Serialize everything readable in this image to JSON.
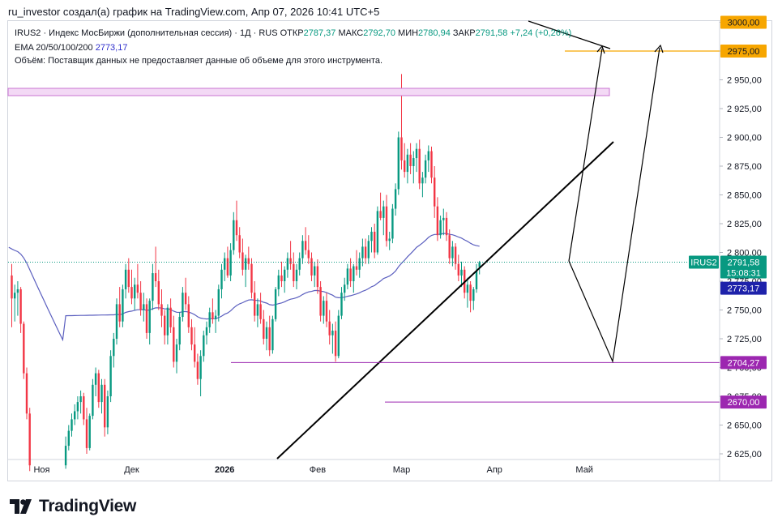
{
  "header": {
    "author_line": "ru_investor создал(а) график на TradingView.com, Апр 07, 2026 10:41 UTC+5"
  },
  "legend": {
    "instrument": "IRUS2 · Индекс МосБиржи (дополнительная сессия) · 1Д · RUS",
    "open_label": "ОТКР",
    "open_value": "2787,37",
    "high_label": "МАКС",
    "high_value": "2792,70",
    "low_label": "МИН",
    "low_value": "2780,94",
    "close_label": "ЗАКР",
    "close_value": "2791,58",
    "change": "+7,24 (+0,26%)",
    "ema_label": "EMA 20/50/100/200",
    "ema_value": "2773,17",
    "volume_note": "Объём: Поставщик данных не предоставляет данные об объеме для этого инструмента."
  },
  "price_tags": {
    "ticker": "IRUS2",
    "last_price": "2791,58",
    "countdown": "15:08:31",
    "ema_price": "2773,17",
    "level_2975": "2975,00",
    "level_3000": "3000,00",
    "level_2704": "2704,27",
    "level_2670": "2670,00"
  },
  "brand": {
    "name": "TradingView"
  },
  "colors": {
    "up": "#089981",
    "down": "#f23645",
    "ema": "#5b5fbf",
    "orange": "#f7a600",
    "purple": "#9c27b0"
  },
  "chart_data": {
    "type": "candlestick",
    "title": "IRUS2 · Индекс МосБиржи (дополнительная сессия) · 1Д",
    "y_axis": {
      "range": [
        2612,
        3010
      ],
      "ticks": [
        "2 625,00",
        "2 650,00",
        "2 675,00",
        "2 700,00",
        "2 725,00",
        "2 750,00",
        "2 775,00",
        "2 800,00",
        "2 825,00",
        "2 850,00",
        "2 875,00",
        "2 900,00",
        "2 925,00",
        "2 950,00",
        "2 975,00",
        "3 000,00"
      ]
    },
    "x_axis": {
      "labels": [
        {
          "text": "Ноя",
          "day": 10
        },
        {
          "text": "Дек",
          "day": 40
        },
        {
          "text": "2026",
          "day": 71
        },
        {
          "text": "Фев",
          "day": 102
        },
        {
          "text": "Мар",
          "day": 130
        },
        {
          "text": "Апр",
          "day": 161
        },
        {
          "text": "Май",
          "day": 191
        }
      ]
    },
    "candles": [
      [
        0,
        2780,
        2790,
        2735,
        2760
      ],
      [
        1,
        2760,
        2772,
        2740,
        2765
      ],
      [
        2,
        2765,
        2775,
        2745,
        2768
      ],
      [
        3,
        2768,
        2770,
        2730,
        2738
      ],
      [
        4,
        2738,
        2740,
        2690,
        2695
      ],
      [
        5,
        2695,
        2700,
        2655,
        2660
      ],
      [
        6,
        2660,
        2665,
        2610,
        2615
      ],
      [
        18,
        2615,
        2640,
        2612,
        2632
      ],
      [
        19,
        2632,
        2650,
        2628,
        2645
      ],
      [
        20,
        2645,
        2660,
        2640,
        2655
      ],
      [
        21,
        2655,
        2668,
        2650,
        2662
      ],
      [
        22,
        2662,
        2675,
        2655,
        2670
      ],
      [
        23,
        2670,
        2680,
        2660,
        2675
      ],
      [
        24,
        2675,
        2678,
        2650,
        2655
      ],
      [
        25,
        2655,
        2665,
        2625,
        2630
      ],
      [
        26,
        2630,
        2660,
        2628,
        2658
      ],
      [
        27,
        2658,
        2690,
        2655,
        2685
      ],
      [
        28,
        2685,
        2700,
        2675,
        2695
      ],
      [
        29,
        2695,
        2698,
        2665,
        2670
      ],
      [
        30,
        2670,
        2690,
        2660,
        2685
      ],
      [
        31,
        2685,
        2690,
        2640,
        2648
      ],
      [
        32,
        2648,
        2680,
        2642,
        2675
      ],
      [
        33,
        2675,
        2715,
        2670,
        2710
      ],
      [
        34,
        2710,
        2730,
        2700,
        2725
      ],
      [
        35,
        2725,
        2760,
        2720,
        2755
      ],
      [
        36,
        2755,
        2770,
        2735,
        2740
      ],
      [
        37,
        2740,
        2772,
        2735,
        2768
      ],
      [
        38,
        2768,
        2790,
        2760,
        2785
      ],
      [
        39,
        2785,
        2795,
        2765,
        2770
      ],
      [
        40,
        2770,
        2785,
        2755,
        2760
      ],
      [
        41,
        2760,
        2778,
        2750,
        2772
      ],
      [
        42,
        2772,
        2790,
        2760,
        2765
      ],
      [
        43,
        2765,
        2775,
        2745,
        2750
      ],
      [
        44,
        2750,
        2765,
        2740,
        2755
      ],
      [
        45,
        2755,
        2760,
        2725,
        2730
      ],
      [
        46,
        2730,
        2760,
        2720,
        2758
      ],
      [
        47,
        2758,
        2790,
        2750,
        2782
      ],
      [
        48,
        2782,
        2805,
        2770,
        2775
      ],
      [
        49,
        2775,
        2785,
        2750,
        2755
      ],
      [
        50,
        2755,
        2768,
        2735,
        2745
      ],
      [
        51,
        2745,
        2750,
        2720,
        2728
      ],
      [
        52,
        2728,
        2755,
        2720,
        2752
      ],
      [
        53,
        2752,
        2760,
        2730,
        2735
      ],
      [
        54,
        2735,
        2745,
        2700,
        2705
      ],
      [
        55,
        2705,
        2725,
        2695,
        2720
      ],
      [
        56,
        2720,
        2748,
        2715,
        2744
      ],
      [
        57,
        2744,
        2770,
        2740,
        2765
      ],
      [
        58,
        2765,
        2778,
        2750,
        2755
      ],
      [
        59,
        2755,
        2762,
        2730,
        2735
      ],
      [
        60,
        2735,
        2742,
        2715,
        2720
      ],
      [
        61,
        2720,
        2735,
        2700,
        2705
      ],
      [
        62,
        2705,
        2712,
        2685,
        2690
      ],
      [
        63,
        2690,
        2715,
        2675,
        2710
      ],
      [
        64,
        2710,
        2732,
        2705,
        2728
      ],
      [
        65,
        2728,
        2740,
        2720,
        2735
      ],
      [
        66,
        2735,
        2752,
        2730,
        2748
      ],
      [
        67,
        2748,
        2760,
        2738,
        2742
      ],
      [
        68,
        2742,
        2750,
        2730,
        2745
      ],
      [
        69,
        2745,
        2772,
        2740,
        2768
      ],
      [
        70,
        2768,
        2790,
        2760,
        2785
      ],
      [
        71,
        2785,
        2800,
        2775,
        2795
      ],
      [
        72,
        2795,
        2805,
        2778,
        2780
      ],
      [
        73,
        2780,
        2808,
        2775,
        2802
      ],
      [
        74,
        2802,
        2835,
        2798,
        2828
      ],
      [
        75,
        2828,
        2845,
        2810,
        2815
      ],
      [
        76,
        2815,
        2822,
        2795,
        2800
      ],
      [
        77,
        2800,
        2812,
        2780,
        2785
      ],
      [
        78,
        2785,
        2798,
        2770,
        2795
      ],
      [
        79,
        2795,
        2805,
        2785,
        2790
      ],
      [
        80,
        2790,
        2795,
        2760,
        2765
      ],
      [
        81,
        2765,
        2775,
        2740,
        2745
      ],
      [
        82,
        2745,
        2760,
        2735,
        2755
      ],
      [
        83,
        2755,
        2765,
        2738,
        2742
      ],
      [
        84,
        2742,
        2750,
        2720,
        2725
      ],
      [
        85,
        2725,
        2740,
        2715,
        2735
      ],
      [
        86,
        2735,
        2745,
        2710,
        2715
      ],
      [
        87,
        2715,
        2745,
        2712,
        2742
      ],
      [
        88,
        2742,
        2770,
        2740,
        2768
      ],
      [
        89,
        2768,
        2785,
        2762,
        2780
      ],
      [
        90,
        2780,
        2792,
        2770,
        2775
      ],
      [
        91,
        2775,
        2788,
        2765,
        2785
      ],
      [
        92,
        2785,
        2800,
        2778,
        2795
      ],
      [
        93,
        2795,
        2810,
        2785,
        2790
      ],
      [
        94,
        2790,
        2800,
        2770,
        2775
      ],
      [
        95,
        2775,
        2790,
        2768,
        2785
      ],
      [
        96,
        2785,
        2800,
        2780,
        2795
      ],
      [
        97,
        2795,
        2815,
        2790,
        2810
      ],
      [
        98,
        2810,
        2822,
        2798,
        2802
      ],
      [
        99,
        2802,
        2815,
        2790,
        2795
      ],
      [
        100,
        2795,
        2800,
        2775,
        2780
      ],
      [
        101,
        2780,
        2792,
        2770,
        2788
      ],
      [
        102,
        2788,
        2794,
        2764,
        2770
      ],
      [
        103,
        2770,
        2775,
        2740,
        2745
      ],
      [
        104,
        2745,
        2762,
        2738,
        2758
      ],
      [
        105,
        2758,
        2765,
        2735,
        2740
      ],
      [
        106,
        2740,
        2750,
        2720,
        2728
      ],
      [
        107,
        2728,
        2738,
        2712,
        2732
      ],
      [
        108,
        2732,
        2740,
        2705,
        2710
      ],
      [
        109,
        2710,
        2750,
        2708,
        2745
      ],
      [
        110,
        2745,
        2770,
        2742,
        2765
      ],
      [
        111,
        2765,
        2778,
        2758,
        2772
      ],
      [
        112,
        2772,
        2790,
        2768,
        2786
      ],
      [
        113,
        2786,
        2795,
        2770,
        2775
      ],
      [
        114,
        2775,
        2790,
        2765,
        2788
      ],
      [
        115,
        2788,
        2802,
        2780,
        2785
      ],
      [
        116,
        2785,
        2800,
        2778,
        2795
      ],
      [
        117,
        2795,
        2812,
        2788,
        2805
      ],
      [
        118,
        2805,
        2812,
        2790,
        2795
      ],
      [
        119,
        2795,
        2815,
        2790,
        2810
      ],
      [
        120,
        2810,
        2822,
        2800,
        2818
      ],
      [
        121,
        2818,
        2825,
        2795,
        2800
      ],
      [
        122,
        2800,
        2840,
        2798,
        2836
      ],
      [
        123,
        2836,
        2852,
        2828,
        2830
      ],
      [
        124,
        2830,
        2845,
        2815,
        2840
      ],
      [
        125,
        2840,
        2850,
        2805,
        2810
      ],
      [
        126,
        2810,
        2818,
        2802,
        2812
      ],
      [
        127,
        2812,
        2842,
        2808,
        2838
      ],
      [
        128,
        2838,
        2860,
        2832,
        2855
      ],
      [
        129,
        2855,
        2905,
        2850,
        2900
      ],
      [
        130,
        2900,
        2955,
        2872,
        2880
      ],
      [
        131,
        2880,
        2895,
        2865,
        2870
      ],
      [
        132,
        2870,
        2890,
        2860,
        2885
      ],
      [
        133,
        2885,
        2895,
        2868,
        2875
      ],
      [
        134,
        2875,
        2888,
        2860,
        2882
      ],
      [
        135,
        2882,
        2895,
        2870,
        2890
      ],
      [
        136,
        2890,
        2898,
        2855,
        2860
      ],
      [
        137,
        2860,
        2870,
        2848,
        2865
      ],
      [
        138,
        2865,
        2885,
        2860,
        2880
      ],
      [
        139,
        2880,
        2893,
        2870,
        2888
      ],
      [
        140,
        2888,
        2892,
        2860,
        2865
      ],
      [
        141,
        2865,
        2875,
        2830,
        2840
      ],
      [
        142,
        2840,
        2848,
        2810,
        2815
      ],
      [
        143,
        2815,
        2832,
        2812,
        2828
      ],
      [
        144,
        2828,
        2838,
        2815,
        2830
      ],
      [
        145,
        2830,
        2835,
        2810,
        2815
      ],
      [
        146,
        2815,
        2820,
        2790,
        2795
      ],
      [
        147,
        2795,
        2810,
        2788,
        2805
      ],
      [
        148,
        2805,
        2808,
        2785,
        2790
      ],
      [
        149,
        2790,
        2798,
        2775,
        2780
      ],
      [
        150,
        2780,
        2792,
        2770,
        2785
      ],
      [
        151,
        2785,
        2788,
        2760,
        2765
      ],
      [
        152,
        2765,
        2778,
        2752,
        2772
      ],
      [
        153,
        2772,
        2775,
        2748,
        2758
      ],
      [
        154,
        2758,
        2770,
        2750,
        2768
      ],
      [
        155,
        2768,
        2790,
        2765,
        2784
      ],
      [
        156,
        2787.37,
        2792.7,
        2780.94,
        2791.58
      ]
    ]
  }
}
